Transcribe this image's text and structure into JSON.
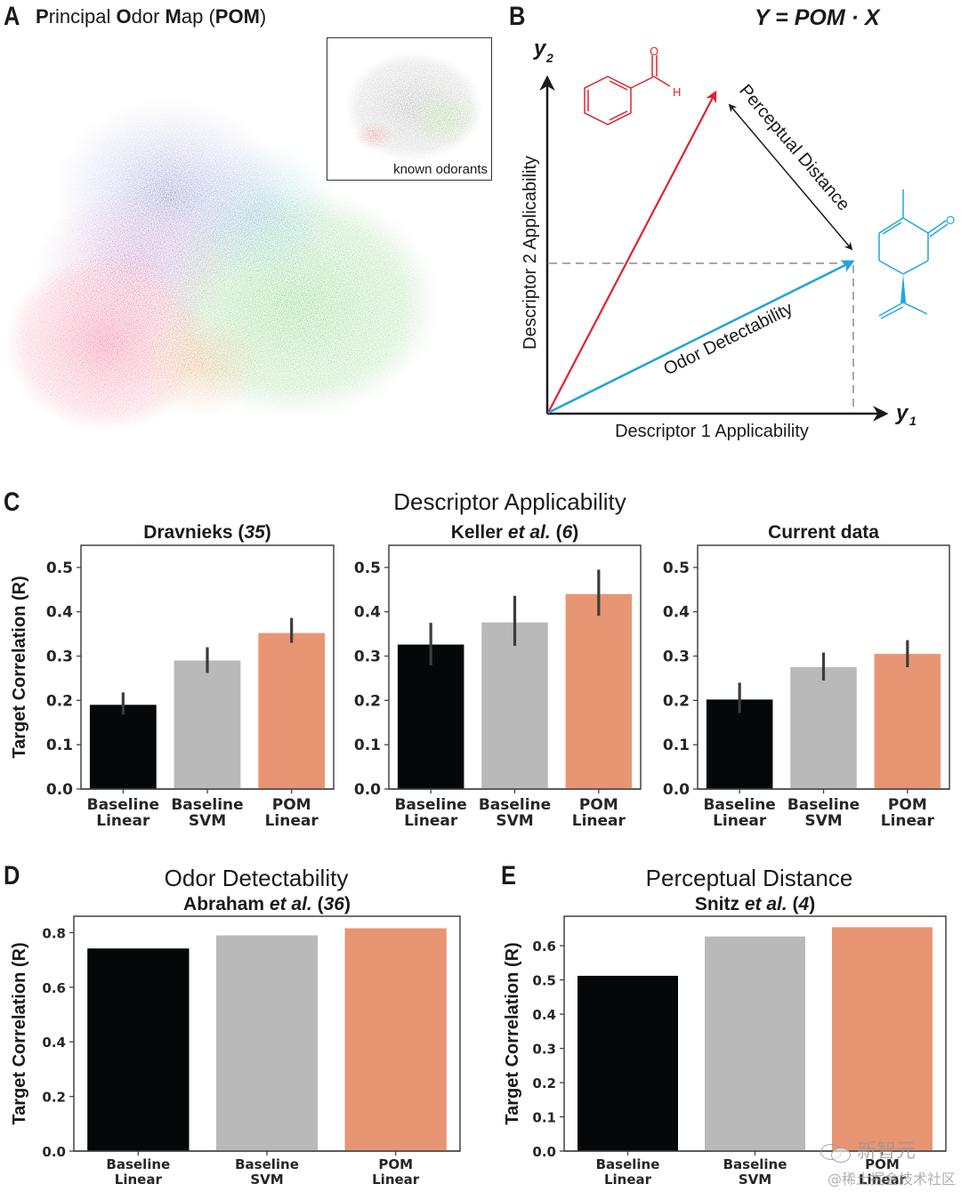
{
  "panels": {
    "A": {
      "letter": "A",
      "title_parts": [
        {
          "text": "P",
          "bold": true
        },
        {
          "text": "rincipal ",
          "bold": false
        },
        {
          "text": "O",
          "bold": true
        },
        {
          "text": "dor ",
          "bold": false
        },
        {
          "text": "M",
          "bold": true
        },
        {
          "text": "ap (",
          "bold": false
        },
        {
          "text": "POM",
          "bold": true
        },
        {
          "text": ")",
          "bold": false
        }
      ],
      "inset_label": "known odorants"
    },
    "B": {
      "letter": "B",
      "equation": "Y = POM · X",
      "y_axis_symbol": "y",
      "y_axis_sub": "2",
      "x_axis_symbol": "y",
      "x_axis_sub": "1",
      "y_axis_label": "Descriptor 2 Applicability",
      "x_axis_label": "Descriptor 1 Applicability",
      "arrow_blue_label": "Odor Detectability",
      "arrow_black_label": "Perceptual Distance",
      "molecule_red_atoms": [
        "O",
        "H"
      ],
      "molecule_blue_atoms": [
        "O"
      ],
      "colors": {
        "red": "#e0232e",
        "blue": "#1fa6dd",
        "dash": "#8c8c8c"
      }
    },
    "C": {
      "letter": "C",
      "group_title": "Descriptor Applicability"
    },
    "D": {
      "letter": "D",
      "group_title": "Odor Detectability"
    },
    "E": {
      "letter": "E",
      "group_title": "Perceptual Distance"
    }
  },
  "bar_colors": {
    "Baseline Linear": "#050808",
    "Baseline SVM": "#b9b9b9",
    "POM Linear": "#e89574"
  },
  "chart_data": [
    {
      "id": "C1",
      "type": "bar",
      "title": "Dravnieks (35)",
      "title_parts": [
        {
          "text": "Dravnieks (",
          "italic": false
        },
        {
          "text": "35",
          "italic": true
        },
        {
          "text": ")",
          "italic": false
        }
      ],
      "ylabel": "Target Correlation (R)",
      "ylim": [
        0,
        0.55
      ],
      "yticks": [
        "0.0",
        "0.1",
        "0.2",
        "0.3",
        "0.4",
        "0.5"
      ],
      "categories": [
        [
          "Baseline",
          "Linear"
        ],
        [
          "Baseline",
          "SVM"
        ],
        [
          "POM",
          "Linear"
        ]
      ],
      "values": [
        0.19,
        0.29,
        0.352
      ],
      "errors_low": [
        0.168,
        0.262,
        0.33
      ],
      "errors_high": [
        0.218,
        0.32,
        0.386
      ]
    },
    {
      "id": "C2",
      "type": "bar",
      "title": "Keller et al. (6)",
      "title_parts": [
        {
          "text": "Keller ",
          "italic": false
        },
        {
          "text": "et al.",
          "italic": true
        },
        {
          "text": " (",
          "italic": false
        },
        {
          "text": "6",
          "italic": true
        },
        {
          "text": ")",
          "italic": false
        }
      ],
      "ylabel": "",
      "ylim": [
        0,
        0.55
      ],
      "yticks": [
        "0.0",
        "0.1",
        "0.2",
        "0.3",
        "0.4",
        "0.5"
      ],
      "categories": [
        [
          "Baseline",
          "Linear"
        ],
        [
          "Baseline",
          "SVM"
        ],
        [
          "POM",
          "Linear"
        ]
      ],
      "values": [
        0.326,
        0.376,
        0.44
      ],
      "errors_low": [
        0.279,
        0.323,
        0.391
      ],
      "errors_high": [
        0.375,
        0.436,
        0.495
      ]
    },
    {
      "id": "C3",
      "type": "bar",
      "title": "Current data",
      "title_parts": [
        {
          "text": "Current data",
          "italic": false
        }
      ],
      "ylabel": "",
      "ylim": [
        0,
        0.55
      ],
      "yticks": [
        "0.0",
        "0.1",
        "0.2",
        "0.3",
        "0.4",
        "0.5"
      ],
      "categories": [
        [
          "Baseline",
          "Linear"
        ],
        [
          "Baseline",
          "SVM"
        ],
        [
          "POM",
          "Linear"
        ]
      ],
      "values": [
        0.202,
        0.275,
        0.305
      ],
      "errors_low": [
        0.172,
        0.245,
        0.275
      ],
      "errors_high": [
        0.24,
        0.308,
        0.336
      ]
    },
    {
      "id": "D",
      "type": "bar",
      "title": "Abraham et al. (36)",
      "title_parts": [
        {
          "text": "Abraham ",
          "italic": false
        },
        {
          "text": "et al.",
          "italic": true
        },
        {
          "text": " (",
          "italic": false
        },
        {
          "text": "36",
          "italic": true
        },
        {
          "text": ")",
          "italic": false
        }
      ],
      "ylabel": "Target Correlation (R)",
      "ylim": [
        0,
        0.86
      ],
      "yticks": [
        "0.0",
        "0.2",
        "0.4",
        "0.6",
        "0.8"
      ],
      "categories": [
        [
          "Baseline",
          "Linear"
        ],
        [
          "Baseline",
          "SVM"
        ],
        [
          "POM",
          "Linear"
        ]
      ],
      "values": [
        0.742,
        0.79,
        0.816
      ]
    },
    {
      "id": "E",
      "type": "bar",
      "title": "Snitz et al. (4)",
      "title_parts": [
        {
          "text": "Snitz ",
          "italic": false
        },
        {
          "text": "et al.",
          "italic": true
        },
        {
          "text": " (",
          "italic": false
        },
        {
          "text": "4",
          "italic": true
        },
        {
          "text": ")",
          "italic": false
        }
      ],
      "ylabel": "Target Correlation (R)",
      "ylim": [
        0,
        0.686
      ],
      "yticks": [
        "0.0",
        "0.1",
        "0.2",
        "0.3",
        "0.4",
        "0.5",
        "0.6"
      ],
      "categories": [
        [
          "Baseline",
          "Linear"
        ],
        [
          "Baseline",
          "SVM"
        ],
        [
          "POM",
          "Linear"
        ]
      ],
      "values": [
        0.512,
        0.627,
        0.654
      ]
    }
  ],
  "watermark": {
    "line1": "新智元",
    "line2": "@稀土掘金技术社区"
  }
}
